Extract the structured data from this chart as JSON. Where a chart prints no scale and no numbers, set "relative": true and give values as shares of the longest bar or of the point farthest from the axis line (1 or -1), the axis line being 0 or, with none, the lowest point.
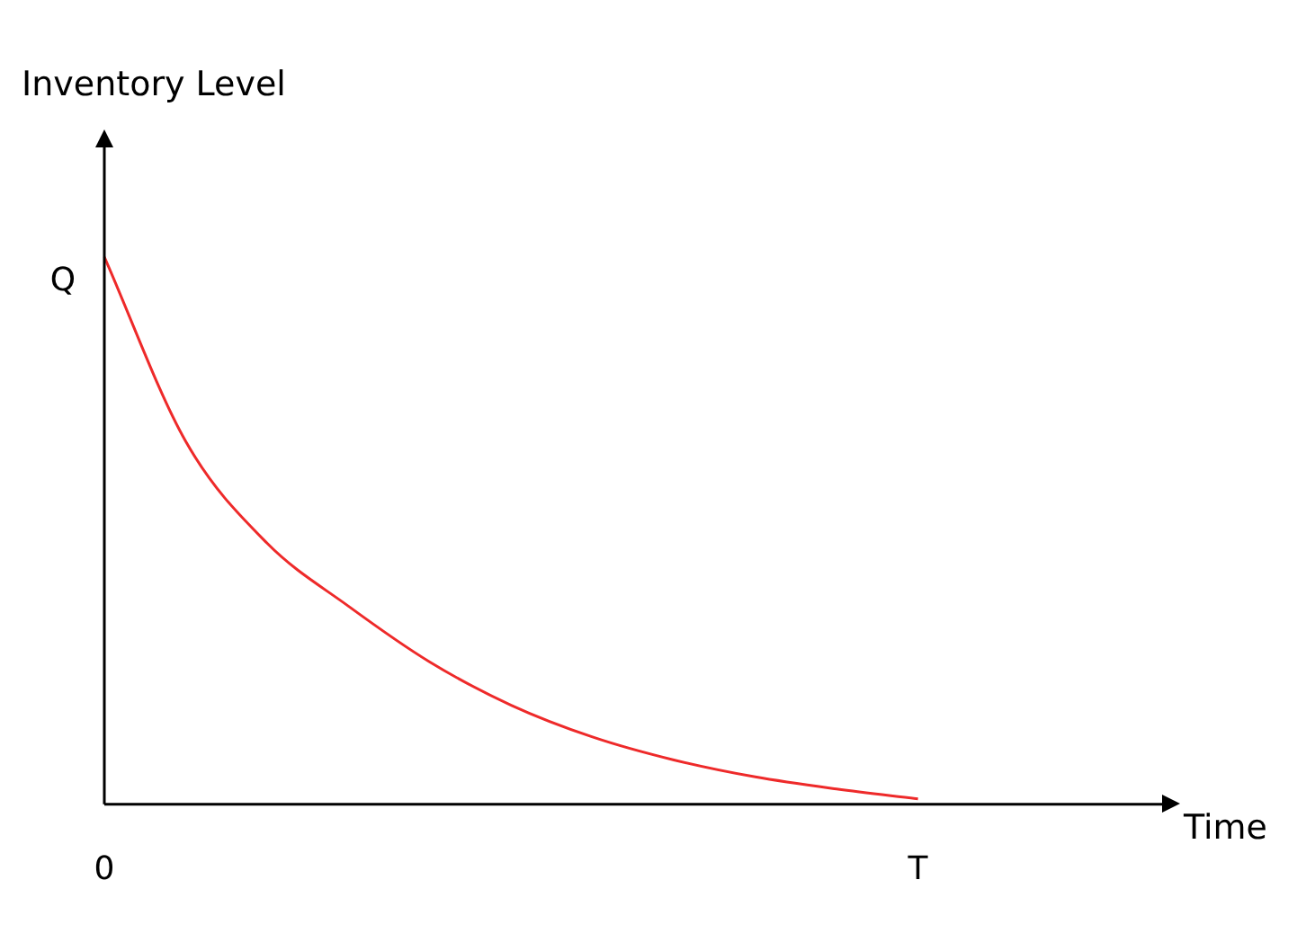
{
  "chart_data": {
    "type": "line",
    "xlabel": "Time",
    "ylabel": "Inventory Level",
    "relative": true,
    "marker": "none",
    "grid": false,
    "legend": false,
    "categories": [
      "0",
      null,
      null,
      null,
      null,
      null,
      null,
      null,
      null,
      null,
      "T",
      null,
      null,
      null
    ],
    "series": [
      {
        "color": "#ee2a2a",
        "values": [
          1,
          0.663,
          0.477,
          0.362,
          0.26,
          0.181,
          0.123,
          0.081,
          0.05,
          0.028,
          0.01,
          null,
          null,
          null
        ]
      }
    ],
    "annotations": [
      {
        "text": "Q",
        "x": "0",
        "y": 1
      }
    ]
  }
}
